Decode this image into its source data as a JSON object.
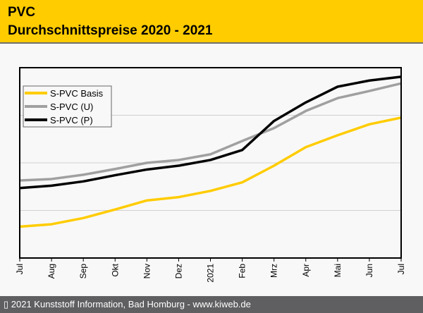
{
  "header": {
    "title": "PVC",
    "subtitle": "Durchschnittspreise 2020 - 2021",
    "background": "#ffcc00"
  },
  "footer": {
    "text": "▯ 2021 Kunststoff Information, Bad Homburg - www.kiweb.de"
  },
  "chart_data": {
    "type": "line",
    "title": "PVC Durchschnittspreise 2020 - 2021",
    "xlabel": "",
    "ylabel": "",
    "categories": [
      "Jul",
      "Aug",
      "Sep",
      "Okt",
      "Nov",
      "Dez",
      "2021",
      "Feb",
      "Mrz",
      "Apr",
      "Mai",
      "Jun",
      "Jul"
    ],
    "ylim": [
      0,
      4
    ],
    "y_unit_note": "relative units (no y-axis labels shown); gridlines at 1, 2, 3",
    "grid": true,
    "legend_position": "top-left",
    "series": [
      {
        "name": "S-PVC Basis",
        "color": "#ffcc00",
        "values": [
          0.66,
          0.71,
          0.84,
          1.02,
          1.21,
          1.28,
          1.41,
          1.59,
          1.94,
          2.33,
          2.58,
          2.81,
          2.95
        ]
      },
      {
        "name": "S-PVC (U)",
        "color": "#a0a0a0",
        "values": [
          1.63,
          1.66,
          1.75,
          1.87,
          2.0,
          2.06,
          2.18,
          2.46,
          2.73,
          3.09,
          3.36,
          3.51,
          3.67
        ]
      },
      {
        "name": "S-PVC (P)",
        "color": "#000000",
        "values": [
          1.47,
          1.52,
          1.61,
          1.74,
          1.86,
          1.94,
          2.06,
          2.27,
          2.88,
          3.27,
          3.6,
          3.73,
          3.81
        ]
      }
    ]
  }
}
